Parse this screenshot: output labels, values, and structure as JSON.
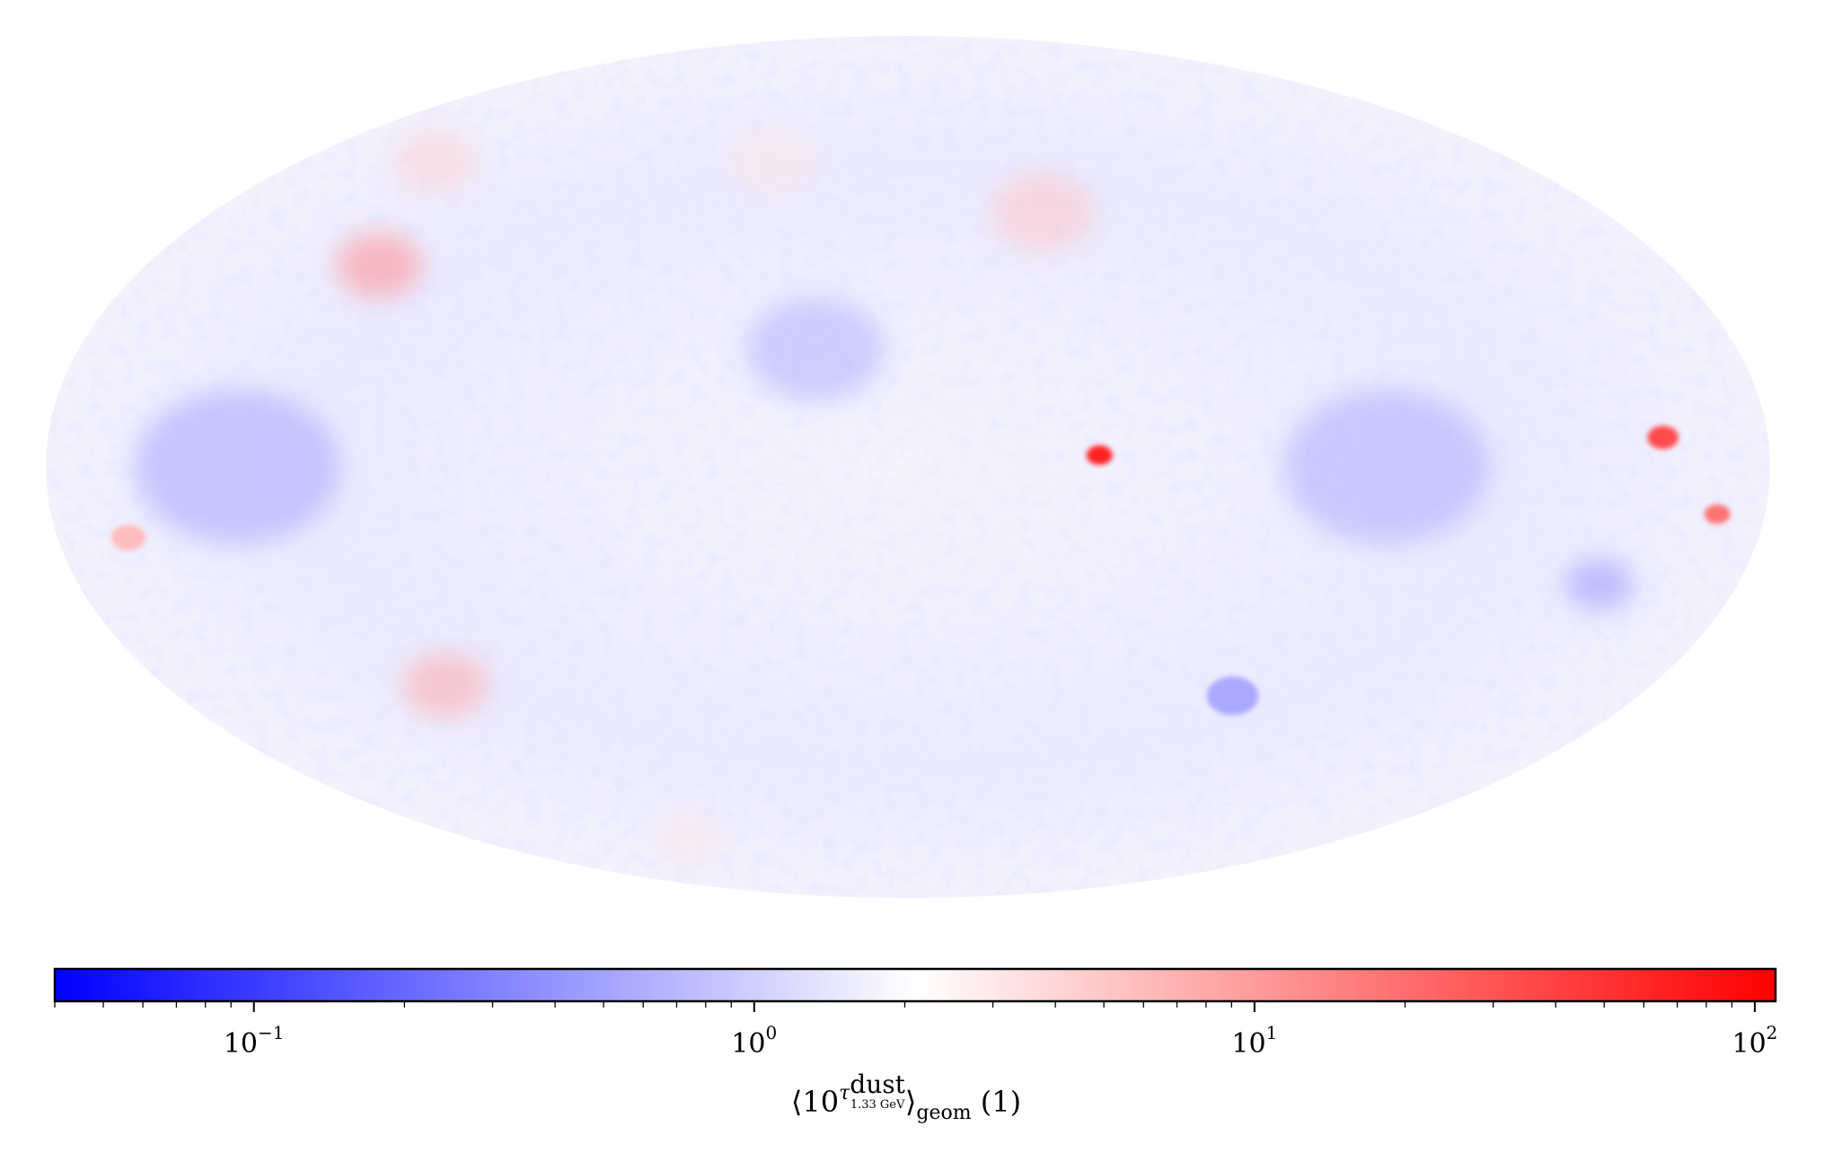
{
  "map": {
    "projection": "mollweide",
    "description_colors": {
      "low": "#0000ff",
      "mid": "#ffffff",
      "high": "#ff0000",
      "map_tint": "#e8e8ff"
    },
    "hotspots": [
      {
        "lon": 125,
        "lat": 35,
        "value": 12,
        "size": 0.05
      },
      {
        "lon": -40,
        "lat": 2,
        "value": 80,
        "size": 0.015
      },
      {
        "lon": -158,
        "lat": 5,
        "value": 40,
        "size": 0.018
      },
      {
        "lon": -170,
        "lat": -8,
        "value": 20,
        "size": 0.015
      },
      {
        "lon": 112,
        "lat": -38,
        "value": 8,
        "size": 0.05
      },
      {
        "lon": -35,
        "lat": 45,
        "value": 5,
        "size": 0.06
      },
      {
        "lon": 140,
        "lat": 55,
        "value": 4,
        "size": 0.05
      },
      {
        "lon": 40,
        "lat": 55,
        "value": 3,
        "size": 0.05
      },
      {
        "lon": 165,
        "lat": -12,
        "value": 6,
        "size": 0.02
      },
      {
        "lon": 90,
        "lat": -70,
        "value": 3,
        "size": 0.04
      }
    ],
    "coldspots": [
      {
        "lon": -150,
        "lat": -20,
        "value": 0.4,
        "size": 0.04
      },
      {
        "lon": 140,
        "lat": 0,
        "value": 0.5,
        "size": 0.12
      },
      {
        "lon": -100,
        "lat": 0,
        "value": 0.55,
        "size": 0.12
      },
      {
        "lon": 20,
        "lat": 20,
        "value": 0.6,
        "size": 0.08
      },
      {
        "lon": -80,
        "lat": -40,
        "value": 0.5,
        "size": 0.03
      }
    ]
  },
  "colorbar": {
    "scale": "log",
    "vmin": 0.04,
    "vmax": 110,
    "center": 2.0,
    "ticks": [
      {
        "base": "10",
        "exp": "−1",
        "value": 0.1
      },
      {
        "base": "10",
        "exp": "0",
        "value": 1
      },
      {
        "base": "10",
        "exp": "1",
        "value": 10
      },
      {
        "base": "10",
        "exp": "2",
        "value": 100
      }
    ],
    "label": {
      "prefix": "⟨10",
      "tau": "τ",
      "sup_top": "dust",
      "sup_bottom": "1.33 GeV",
      "suffix": "⟩",
      "subscript": "geom",
      "unit": "(1)"
    }
  }
}
